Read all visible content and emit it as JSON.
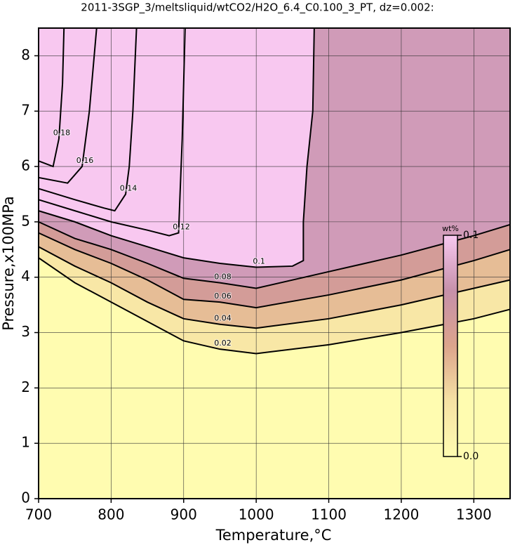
{
  "chart_data": {
    "type": "contour",
    "title": "2011-3SGP_3/meltsliquid/wtCO2/H2O_6.4_C0.100_3_PT, dz=0.002:",
    "xlabel": "Temperature,°C",
    "ylabel": "Pressure,x100MPa",
    "xlim": [
      700,
      1350
    ],
    "ylim": [
      0,
      8.5
    ],
    "xticks": [
      700,
      800,
      900,
      1000,
      1100,
      1200,
      1300
    ],
    "yticks": [
      0,
      1,
      2,
      3,
      4,
      5,
      6,
      7,
      8
    ],
    "grid": true,
    "colormap": [
      "#fffcb0",
      "#f6e2a4",
      "#dca48c",
      "#c690aa",
      "#f8c8f0"
    ],
    "colorbar": {
      "title": "wt%",
      "lim": [
        0,
        0.1
      ],
      "ticks": [
        {
          "value": 0,
          "label": "0.0"
        },
        {
          "value": 0.1,
          "label": "0.1"
        }
      ]
    },
    "contours": [
      {
        "level": 0.02,
        "x": [
          700,
          750,
          800,
          850,
          900,
          950,
          1000,
          1100,
          1200,
          1300,
          1350
        ],
        "y": [
          4.35,
          3.9,
          3.55,
          3.2,
          2.85,
          2.7,
          2.62,
          2.78,
          3.0,
          3.25,
          3.42
        ]
      },
      {
        "level": 0.04,
        "x": [
          700,
          750,
          800,
          850,
          900,
          950,
          1000,
          1100,
          1200,
          1300,
          1350
        ],
        "y": [
          4.55,
          4.2,
          3.9,
          3.55,
          3.25,
          3.15,
          3.08,
          3.25,
          3.5,
          3.8,
          3.95
        ]
      },
      {
        "level": 0.06,
        "x": [
          700,
          750,
          800,
          850,
          900,
          950,
          1000,
          1100,
          1200,
          1300,
          1350
        ],
        "y": [
          4.8,
          4.5,
          4.25,
          3.95,
          3.6,
          3.55,
          3.45,
          3.68,
          3.95,
          4.3,
          4.5
        ]
      },
      {
        "level": 0.08,
        "x": [
          700,
          750,
          800,
          850,
          900,
          950,
          1000,
          1100,
          1200,
          1300,
          1350
        ],
        "y": [
          5.0,
          4.7,
          4.5,
          4.25,
          3.98,
          3.9,
          3.8,
          4.1,
          4.4,
          4.75,
          4.95
        ]
      },
      {
        "level": 0.1,
        "x": [
          700,
          750,
          800,
          850,
          900,
          950,
          1000,
          1050,
          1065,
          1065,
          1070,
          1078,
          1080
        ],
        "y": [
          5.2,
          5.0,
          4.75,
          4.55,
          4.35,
          4.25,
          4.18,
          4.2,
          4.3,
          5.0,
          6.0,
          7.0,
          8.5
        ]
      },
      {
        "level": 0.12,
        "x": [
          700,
          750,
          800,
          850,
          880,
          893,
          895,
          898,
          900,
          902
        ],
        "y": [
          5.4,
          5.2,
          5.0,
          4.85,
          4.75,
          4.8,
          5.5,
          6.5,
          7.5,
          8.5
        ]
      },
      {
        "level": 0.14,
        "x": [
          700,
          750,
          790,
          805,
          820,
          825,
          830,
          835
        ],
        "y": [
          5.6,
          5.4,
          5.25,
          5.2,
          5.5,
          6.0,
          7.0,
          8.5
        ]
      },
      {
        "level": 0.16,
        "x": [
          700,
          740,
          760,
          770,
          780
        ],
        "y": [
          5.8,
          5.7,
          6.0,
          7.0,
          8.5
        ]
      },
      {
        "level": 0.18,
        "x": [
          700,
          720,
          728,
          733,
          735
        ],
        "y": [
          6.1,
          6.0,
          6.5,
          7.5,
          8.5
        ]
      }
    ]
  }
}
